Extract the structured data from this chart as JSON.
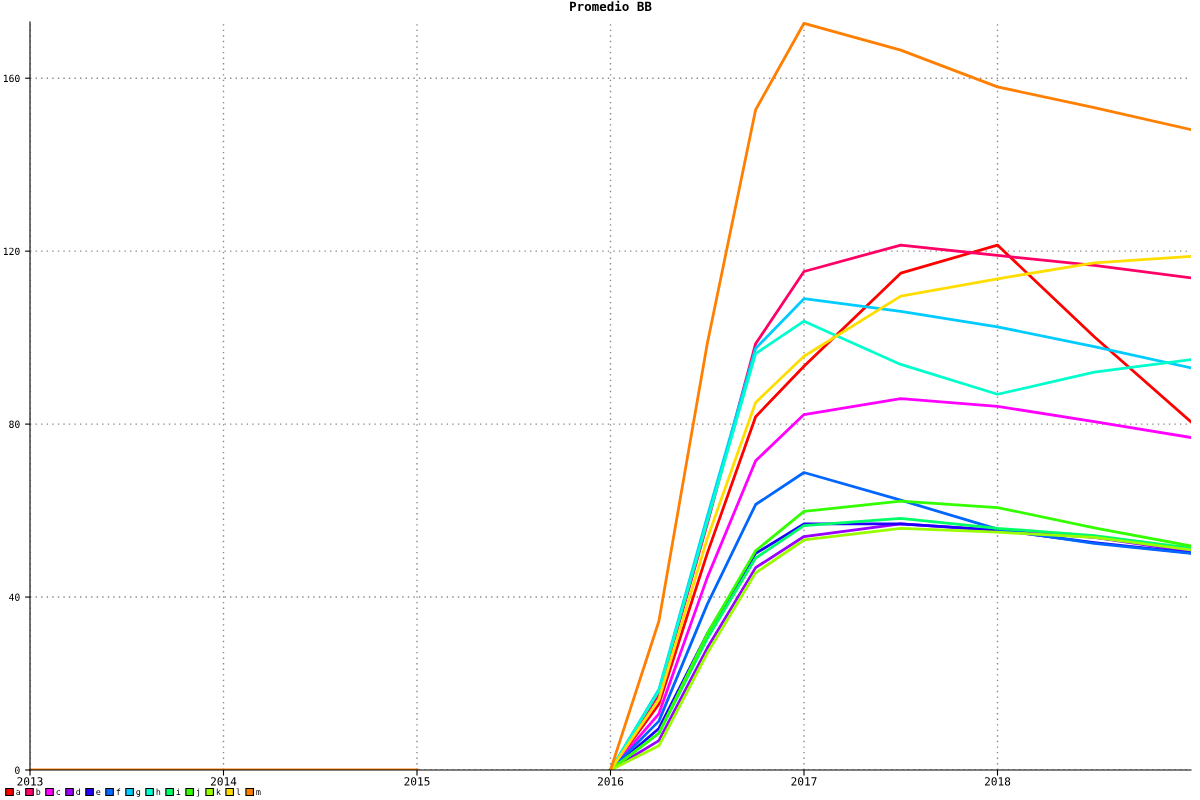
{
  "chart_data": {
    "type": "line",
    "title": "Promedio BB",
    "x": [
      2013,
      2014,
      2015,
      2015.5,
      2016,
      2016.25,
      2016.5,
      2016.75,
      2017,
      2017.5,
      2018,
      2018.5,
      2019
    ],
    "series": [
      {
        "name": "a",
        "color": "#ff0000",
        "values": [
          null,
          null,
          null,
          null,
          0,
          15.2,
          50.1,
          81.7,
          93.4,
          114.9,
          121.4,
          100.2,
          80.5
        ]
      },
      {
        "name": "b",
        "color": "#ff0066",
        "values": [
          null,
          null,
          null,
          null,
          0,
          17.5,
          56.9,
          98.6,
          115.3,
          121.4,
          119,
          116.7,
          113.8
        ]
      },
      {
        "name": "c",
        "color": "#ff00ff",
        "values": [
          null,
          null,
          null,
          null,
          0,
          13,
          44.5,
          71.5,
          82.2,
          85.9,
          84.1,
          80.6,
          76.9
        ]
      },
      {
        "name": "d",
        "color": "#9900ff",
        "values": [
          null,
          null,
          null,
          null,
          0,
          6.8,
          28.2,
          46.8,
          54,
          56.9,
          55.4,
          53.8,
          50.5
        ]
      },
      {
        "name": "e",
        "color": "#2200ff",
        "values": [
          null,
          null,
          null,
          null,
          0,
          9.6,
          31.5,
          50.1,
          56.9,
          56.9,
          55.5,
          52.6,
          50.2
        ]
      },
      {
        "name": "f",
        "color": "#0066ff",
        "values": [
          null,
          null,
          null,
          null,
          0,
          11.3,
          38.3,
          61.4,
          68.8,
          62.4,
          55.7,
          52.4,
          50.1
        ]
      },
      {
        "name": "g",
        "color": "#00ccff",
        "values": [
          null,
          null,
          null,
          null,
          0,
          18.6,
          58.6,
          97.5,
          109,
          106.1,
          102.5,
          97.9,
          93
        ]
      },
      {
        "name": "h",
        "color": "#00ffcc",
        "values": [
          null,
          null,
          null,
          null,
          0,
          18.3,
          57.5,
          96.3,
          103.8,
          93.8,
          86.9,
          92,
          94.9
        ]
      },
      {
        "name": "i",
        "color": "#00ff66",
        "values": [
          null,
          null,
          null,
          null,
          0,
          8.5,
          30.4,
          49,
          56.5,
          58.2,
          55.9,
          54.2,
          51.3
        ]
      },
      {
        "name": "j",
        "color": "#33ff00",
        "values": [
          null,
          null,
          null,
          null,
          0,
          8.5,
          31.5,
          50.7,
          59.8,
          62.2,
          60.7,
          56,
          51.8
        ]
      },
      {
        "name": "k",
        "color": "#99ff00",
        "values": [
          null,
          null,
          null,
          null,
          0,
          5.6,
          27,
          45.6,
          53.2,
          55.9,
          55,
          53.8,
          50.9
        ]
      },
      {
        "name": "l",
        "color": "#ffdd00",
        "values": [
          null,
          null,
          null,
          null,
          0,
          16.3,
          53.5,
          85,
          95.7,
          109.6,
          113.6,
          117.3,
          118.8
        ]
      },
      {
        "name": "m",
        "color": "#ff7f00",
        "values": [
          0,
          0,
          0,
          null,
          0,
          34.4,
          98.6,
          152.7,
          172.7,
          166.5,
          158,
          153.2,
          148.1
        ]
      }
    ],
    "xlim": [
      2013,
      2019
    ],
    "xticks": [
      2013,
      2014,
      2015,
      2016,
      2017,
      2018
    ],
    "ylim": [
      0,
      173
    ],
    "yticks": [
      0,
      40,
      80,
      120,
      160
    ],
    "grid": true,
    "legend": "bottom left",
    "marker": "none",
    "line_style": "solid"
  }
}
